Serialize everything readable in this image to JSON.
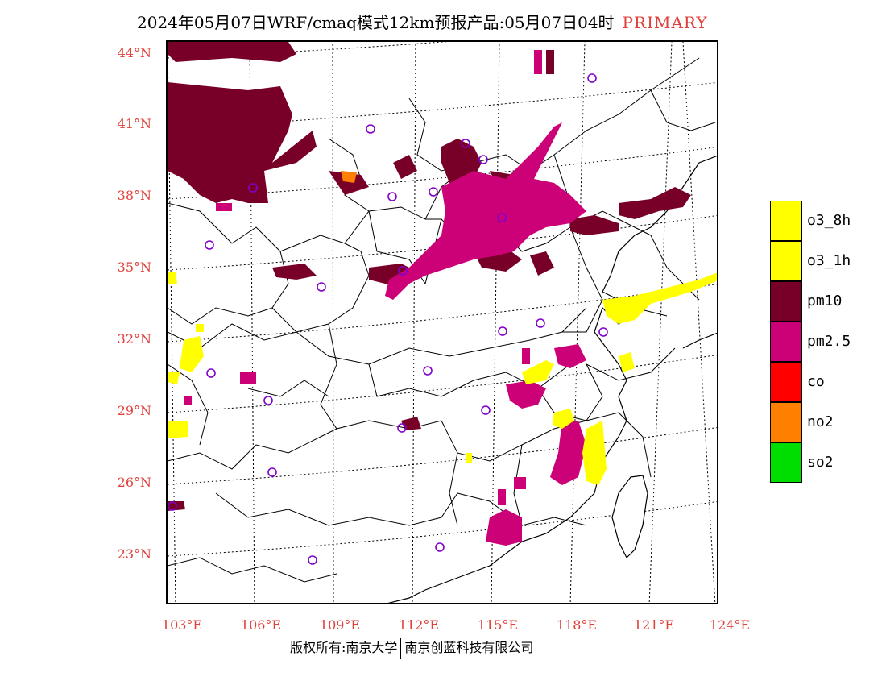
{
  "header": {
    "title": "2024年05月07日WRF/cmaq模式12km预报产品:05月07日04时",
    "tag": "PRIMARY",
    "tag_color": "#e0403a"
  },
  "axes": {
    "lat_labels": [
      "44°N",
      "41°N",
      "38°N",
      "35°N",
      "32°N",
      "29°N",
      "26°N",
      "23°N"
    ],
    "lon_labels": [
      "103°E",
      "106°E",
      "109°E",
      "112°E",
      "115°E",
      "118°E",
      "121°E",
      "124°E"
    ]
  },
  "legend": [
    {
      "label": "o3_8h",
      "color": "#ffff00"
    },
    {
      "label": "o3_1h",
      "color": "#ffff00"
    },
    {
      "label": "pm10",
      "color": "#780028"
    },
    {
      "label": "pm2.5",
      "color": "#cc0077"
    },
    {
      "label": "co",
      "color": "#ff0000"
    },
    {
      "label": "no2",
      "color": "#ff7f00"
    },
    {
      "label": "so2",
      "color": "#00dd00"
    }
  ],
  "footer": {
    "left": "版权所有:南京大学",
    "right": "南京创蓝科技有限公司"
  }
}
